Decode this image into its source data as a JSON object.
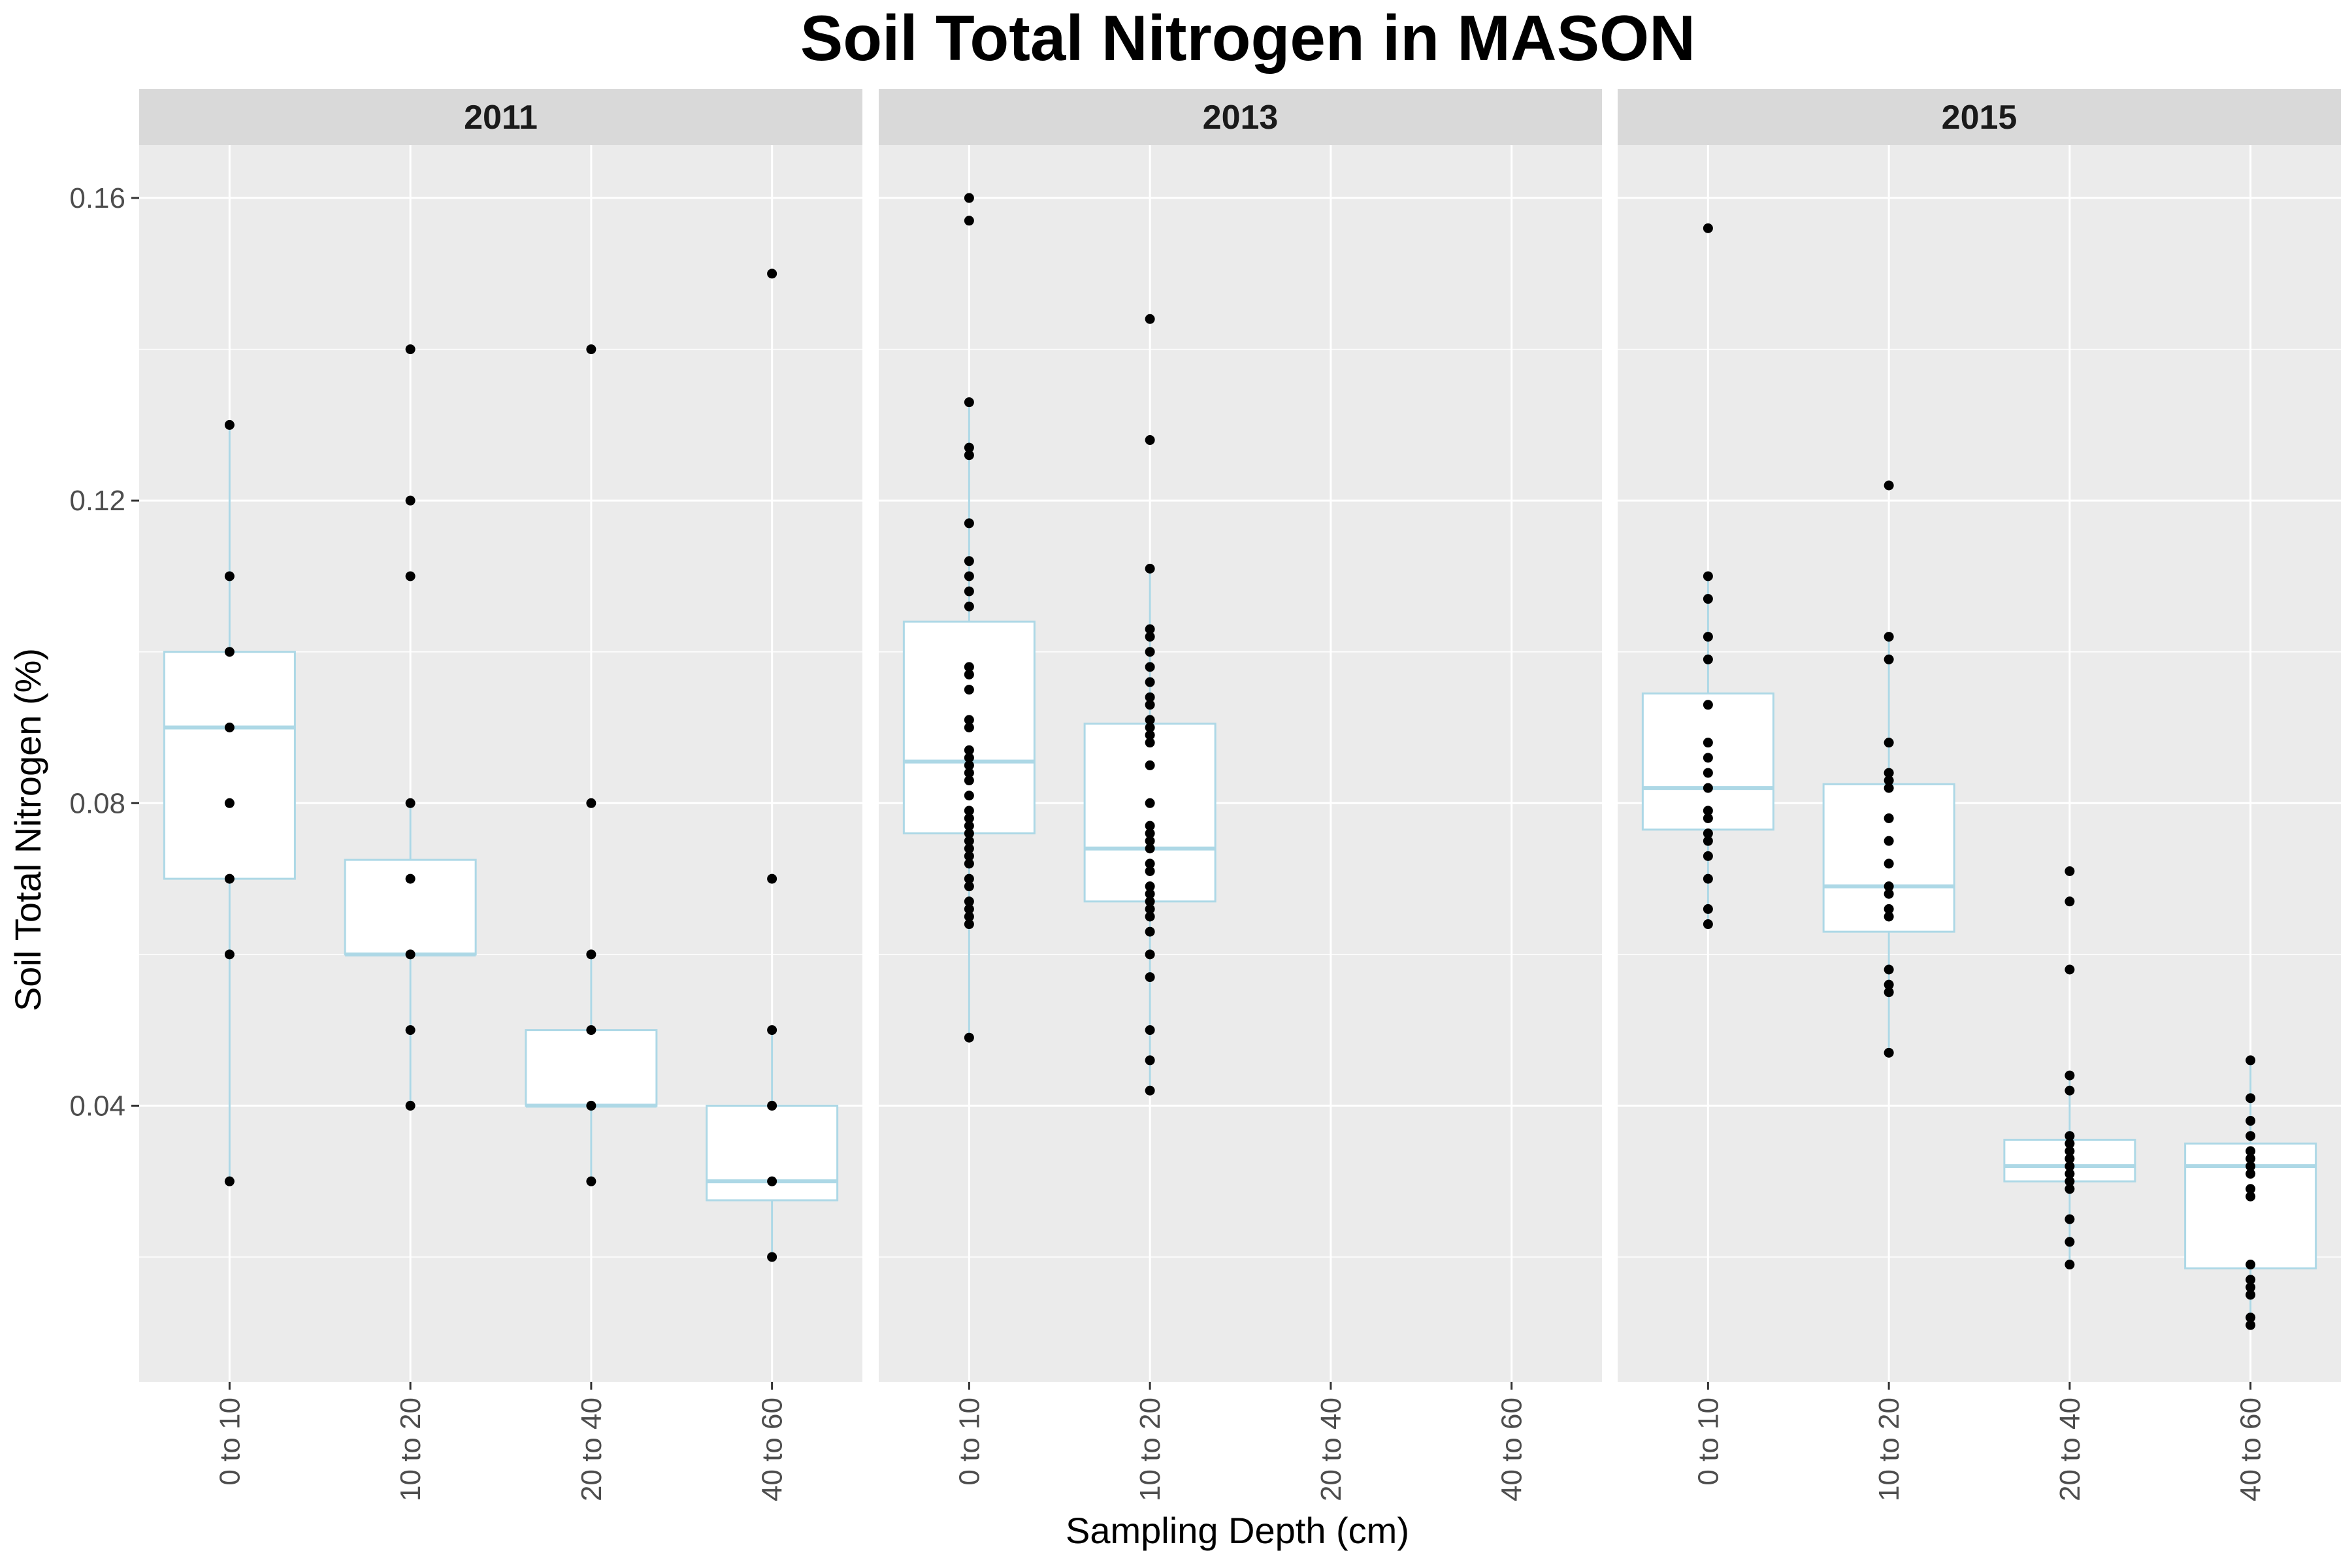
{
  "chart_data": {
    "type": "box",
    "title": "Soil Total Nitrogen in MASON",
    "xlabel": "Sampling Depth (cm)",
    "ylabel": "Soil Total Nitrogen (%)",
    "categories": [
      "0 to 10",
      "10 to 20",
      "20 to 40",
      "40 to 60"
    ],
    "y_ticks": [
      "0.04",
      "0.08",
      "0.12",
      "0.16"
    ],
    "ylim": [
      0.0035,
      0.167
    ],
    "grid": true,
    "box_color": "#add8e6",
    "panel_bg": "#ebebeb",
    "strip_bg": "#d9d9d9",
    "point_color": "#000000",
    "panels": [
      {
        "year": "2011",
        "groups": [
          {
            "category": "0 to 10",
            "box": {
              "whisker_low": 0.03,
              "q1": 0.07,
              "median": 0.09,
              "q3": 0.1,
              "whisker_high": 0.13
            },
            "points": [
              0.13,
              0.11,
              0.1,
              0.09,
              0.08,
              0.07,
              0.06,
              0.03
            ]
          },
          {
            "category": "10 to 20",
            "box": {
              "whisker_low": 0.04,
              "q1": 0.06,
              "median": 0.06,
              "q3": 0.0725,
              "whisker_high": 0.08
            },
            "points": [
              0.14,
              0.12,
              0.11,
              0.08,
              0.07,
              0.06,
              0.05,
              0.04
            ]
          },
          {
            "category": "20 to 40",
            "box": {
              "whisker_low": 0.03,
              "q1": 0.04,
              "median": 0.04,
              "q3": 0.05,
              "whisker_high": 0.06
            },
            "points": [
              0.14,
              0.08,
              0.06,
              0.05,
              0.04,
              0.03
            ]
          },
          {
            "category": "40 to 60",
            "box": {
              "whisker_low": 0.02,
              "q1": 0.0275,
              "median": 0.03,
              "q3": 0.04,
              "whisker_high": 0.05
            },
            "points": [
              0.15,
              0.07,
              0.05,
              0.04,
              0.03,
              0.02
            ]
          }
        ]
      },
      {
        "year": "2013",
        "groups": [
          {
            "category": "0 to 10",
            "box": {
              "whisker_low": 0.049,
              "q1": 0.076,
              "median": 0.0855,
              "q3": 0.104,
              "whisker_high": 0.133
            },
            "points": [
              0.16,
              0.157,
              0.133,
              0.127,
              0.126,
              0.117,
              0.112,
              0.11,
              0.108,
              0.106,
              0.098,
              0.097,
              0.095,
              0.091,
              0.09,
              0.087,
              0.086,
              0.085,
              0.084,
              0.083,
              0.081,
              0.079,
              0.078,
              0.077,
              0.076,
              0.075,
              0.074,
              0.073,
              0.072,
              0.07,
              0.069,
              0.067,
              0.066,
              0.065,
              0.064,
              0.049
            ]
          },
          {
            "category": "10 to 20",
            "box": {
              "whisker_low": 0.042,
              "q1": 0.067,
              "median": 0.074,
              "q3": 0.0905,
              "whisker_high": 0.111
            },
            "points": [
              0.144,
              0.128,
              0.111,
              0.103,
              0.102,
              0.1,
              0.098,
              0.096,
              0.094,
              0.093,
              0.091,
              0.09,
              0.089,
              0.088,
              0.085,
              0.08,
              0.077,
              0.076,
              0.075,
              0.074,
              0.072,
              0.071,
              0.069,
              0.068,
              0.067,
              0.066,
              0.065,
              0.063,
              0.06,
              0.057,
              0.05,
              0.046,
              0.042
            ]
          },
          {
            "category": "20 to 40",
            "box": null,
            "points": []
          },
          {
            "category": "40 to 60",
            "box": null,
            "points": []
          }
        ]
      },
      {
        "year": "2015",
        "groups": [
          {
            "category": "0 to 10",
            "box": {
              "whisker_low": 0.064,
              "q1": 0.0765,
              "median": 0.082,
              "q3": 0.0945,
              "whisker_high": 0.11
            },
            "points": [
              0.156,
              0.11,
              0.107,
              0.102,
              0.099,
              0.093,
              0.088,
              0.086,
              0.084,
              0.082,
              0.079,
              0.078,
              0.076,
              0.075,
              0.073,
              0.07,
              0.066,
              0.064
            ]
          },
          {
            "category": "10 to 20",
            "box": {
              "whisker_low": 0.047,
              "q1": 0.063,
              "median": 0.069,
              "q3": 0.0825,
              "whisker_high": 0.102
            },
            "points": [
              0.122,
              0.102,
              0.099,
              0.088,
              0.084,
              0.083,
              0.082,
              0.078,
              0.075,
              0.072,
              0.069,
              0.068,
              0.066,
              0.065,
              0.058,
              0.056,
              0.055,
              0.047
            ]
          },
          {
            "category": "20 to 40",
            "box": {
              "whisker_low": 0.019,
              "q1": 0.03,
              "median": 0.032,
              "q3": 0.0355,
              "whisker_high": 0.044
            },
            "points": [
              0.071,
              0.067,
              0.058,
              0.044,
              0.042,
              0.036,
              0.035,
              0.034,
              0.033,
              0.032,
              0.031,
              0.03,
              0.029,
              0.025,
              0.022,
              0.019
            ]
          },
          {
            "category": "40 to 60",
            "box": {
              "whisker_low": 0.011,
              "q1": 0.0185,
              "median": 0.032,
              "q3": 0.035,
              "whisker_high": 0.046
            },
            "points": [
              0.046,
              0.041,
              0.038,
              0.036,
              0.034,
              0.033,
              0.032,
              0.031,
              0.029,
              0.028,
              0.019,
              0.017,
              0.016,
              0.015,
              0.012,
              0.011
            ]
          }
        ]
      }
    ]
  }
}
